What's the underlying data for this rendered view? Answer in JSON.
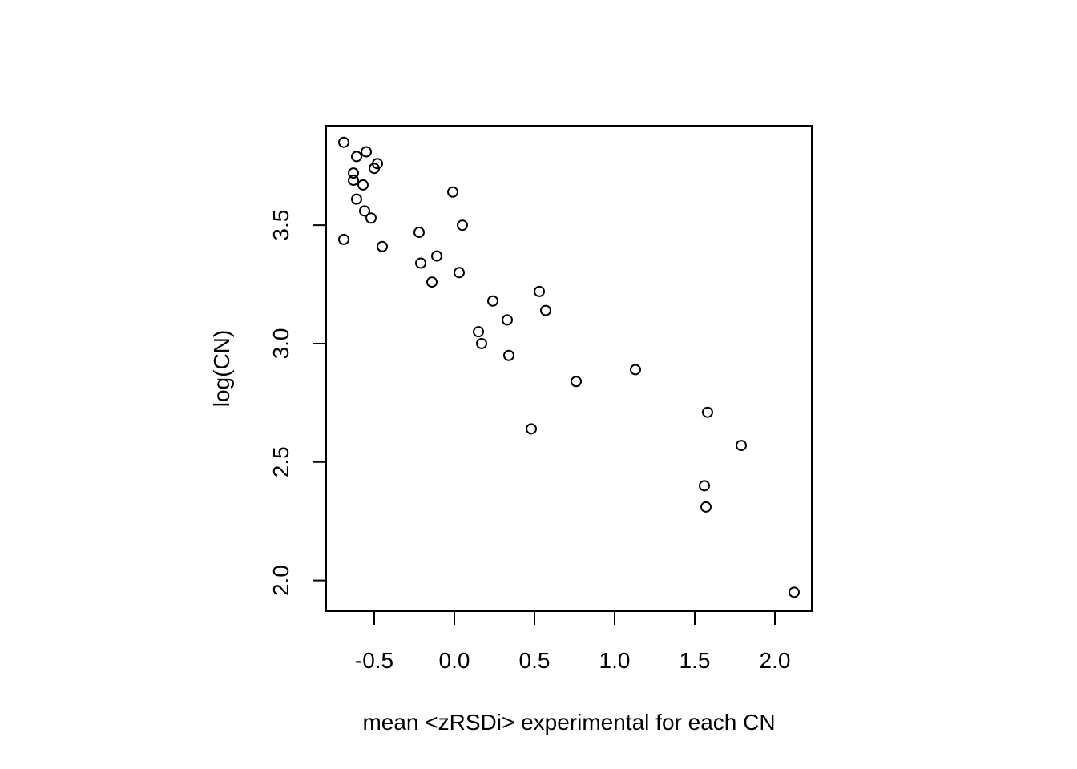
{
  "chart_data": {
    "type": "scatter",
    "title": "",
    "xlabel": "mean <zRSDi> experimental for each CN",
    "ylabel": "log(CN)",
    "xlim": [
      -0.8,
      2.23
    ],
    "ylim": [
      1.87,
      3.92
    ],
    "x_ticks": [
      -0.5,
      0.0,
      0.5,
      1.0,
      1.5,
      2.0
    ],
    "x_tick_labels": [
      "-0.5",
      "0.0",
      "0.5",
      "1.0",
      "1.5",
      "2.0"
    ],
    "y_ticks": [
      2.0,
      2.5,
      3.0,
      3.5
    ],
    "y_tick_labels": [
      "2.0",
      "2.5",
      "3.0",
      "3.5"
    ],
    "grid": false,
    "legend": "none",
    "marker": "open-circle",
    "series": [
      {
        "points": [
          [
            -0.69,
            3.85
          ],
          [
            -0.55,
            3.81
          ],
          [
            -0.61,
            3.79
          ],
          [
            -0.48,
            3.76
          ],
          [
            -0.5,
            3.74
          ],
          [
            -0.63,
            3.72
          ],
          [
            -0.63,
            3.69
          ],
          [
            -0.57,
            3.67
          ],
          [
            -0.61,
            3.61
          ],
          [
            -0.56,
            3.56
          ],
          [
            -0.52,
            3.53
          ],
          [
            -0.69,
            3.44
          ],
          [
            -0.45,
            3.41
          ],
          [
            -0.01,
            3.64
          ],
          [
            0.05,
            3.5
          ],
          [
            -0.22,
            3.47
          ],
          [
            -0.11,
            3.37
          ],
          [
            -0.21,
            3.34
          ],
          [
            0.03,
            3.3
          ],
          [
            -0.14,
            3.26
          ],
          [
            0.53,
            3.22
          ],
          [
            0.24,
            3.18
          ],
          [
            0.57,
            3.14
          ],
          [
            0.33,
            3.1
          ],
          [
            0.15,
            3.05
          ],
          [
            0.17,
            3.0
          ],
          [
            0.34,
            2.95
          ],
          [
            1.13,
            2.89
          ],
          [
            0.76,
            2.84
          ],
          [
            1.58,
            2.71
          ],
          [
            0.48,
            2.64
          ],
          [
            1.79,
            2.57
          ],
          [
            1.56,
            2.4
          ],
          [
            1.57,
            2.31
          ],
          [
            2.12,
            1.95
          ]
        ]
      }
    ]
  }
}
